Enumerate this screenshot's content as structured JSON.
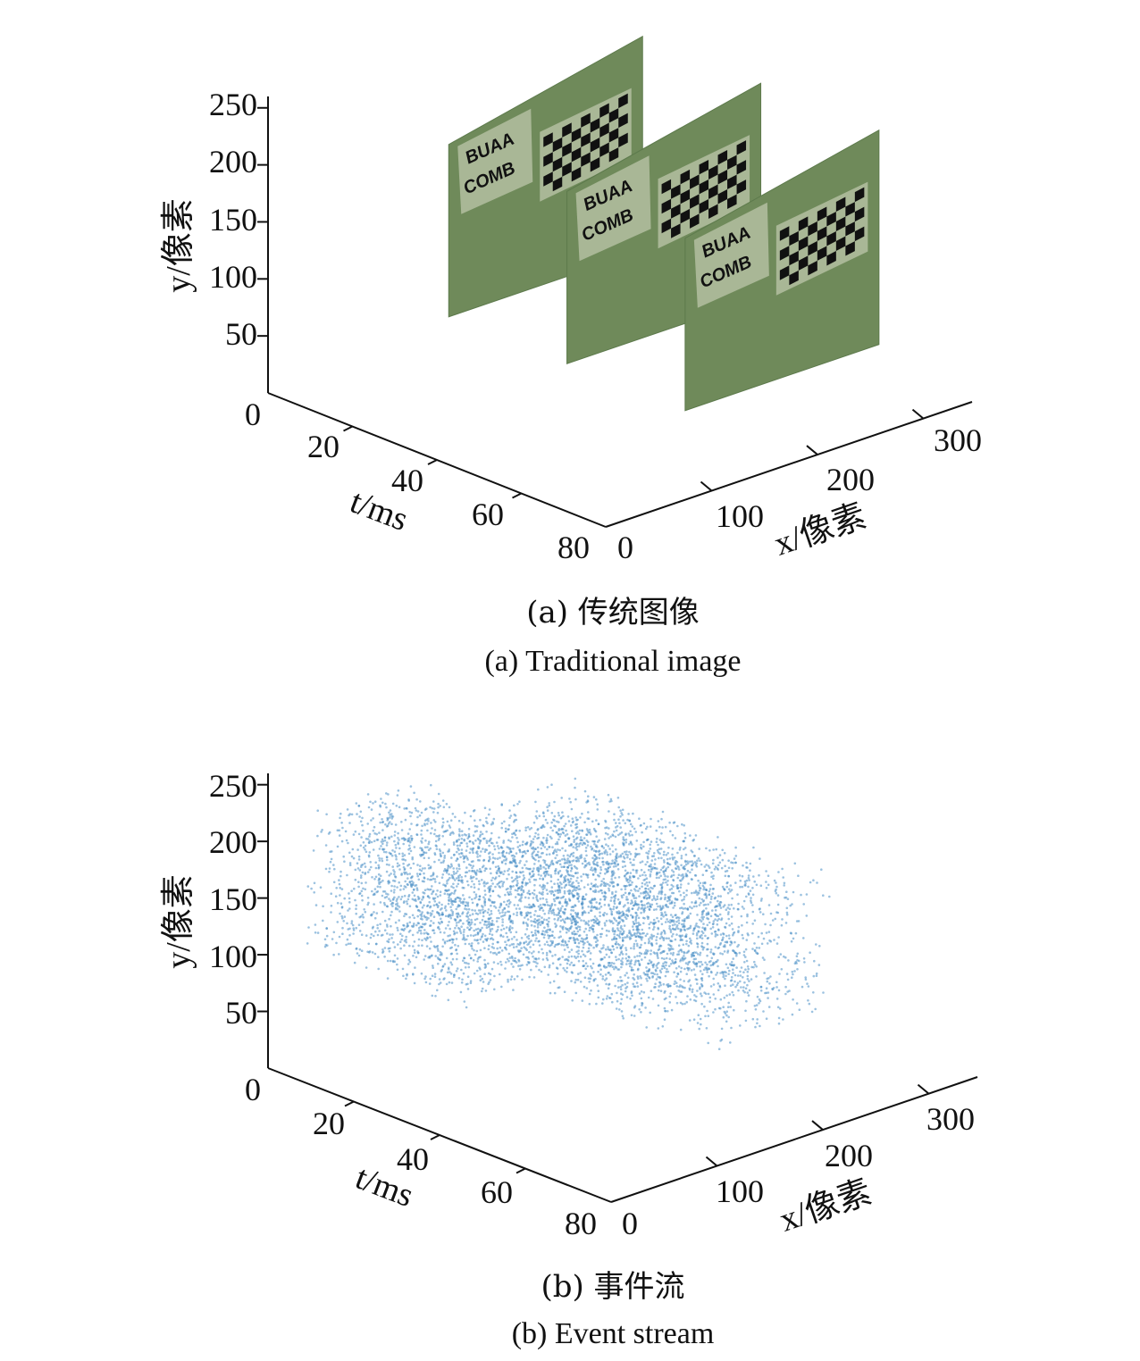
{
  "colors": {
    "frame": "#6f8a5a",
    "frame_dark": "#5d7a4c",
    "label_paper": "#d9dcc8",
    "events": "#4a8fc7"
  },
  "chart_data": [
    {
      "type": "scatter",
      "panel": "a",
      "rendering": "image-frames",
      "caption_cn": "(a) 传统图像",
      "caption_en": "(a) Traditional image",
      "xlabel": "x/像素",
      "ylabel": "y/像素",
      "zlabel": "t/ms",
      "x_ticks": [
        "0",
        "100",
        "200",
        "300"
      ],
      "y_ticks": [
        "0",
        "50",
        "100",
        "150",
        "200",
        "250"
      ],
      "t_ticks": [
        "20",
        "40",
        "60",
        "80"
      ],
      "xlim": [
        0,
        346
      ],
      "ylim": [
        0,
        260
      ],
      "tlim": [
        0,
        80
      ],
      "frame_times": [
        10,
        38,
        66
      ],
      "frame_text": [
        "BUAA",
        "COMB"
      ],
      "grid": false
    },
    {
      "type": "scatter",
      "panel": "b",
      "rendering": "event-points",
      "caption_cn": "(b) 事件流",
      "caption_en": "(b) Event stream",
      "xlabel": "x/像素",
      "ylabel": "y/像素",
      "zlabel": "t/ms",
      "x_ticks": [
        "0",
        "100",
        "200",
        "300"
      ],
      "y_ticks": [
        "0",
        "50",
        "100",
        "150",
        "200",
        "250"
      ],
      "t_ticks": [
        "20",
        "40",
        "60",
        "80"
      ],
      "xlim": [
        0,
        346
      ],
      "ylim": [
        0,
        260
      ],
      "tlim": [
        0,
        80
      ],
      "event_clusters": [
        {
          "t_range": [
            0,
            35
          ],
          "x_range": [
            60,
            230
          ],
          "y_range": [
            90,
            215
          ]
        },
        {
          "t_range": [
            25,
            70
          ],
          "x_range": [
            100,
            300
          ],
          "y_range": [
            120,
            240
          ]
        },
        {
          "t_range": [
            30,
            80
          ],
          "x_range": [
            150,
            346
          ],
          "y_range": [
            100,
            225
          ]
        }
      ],
      "grid": false
    }
  ]
}
